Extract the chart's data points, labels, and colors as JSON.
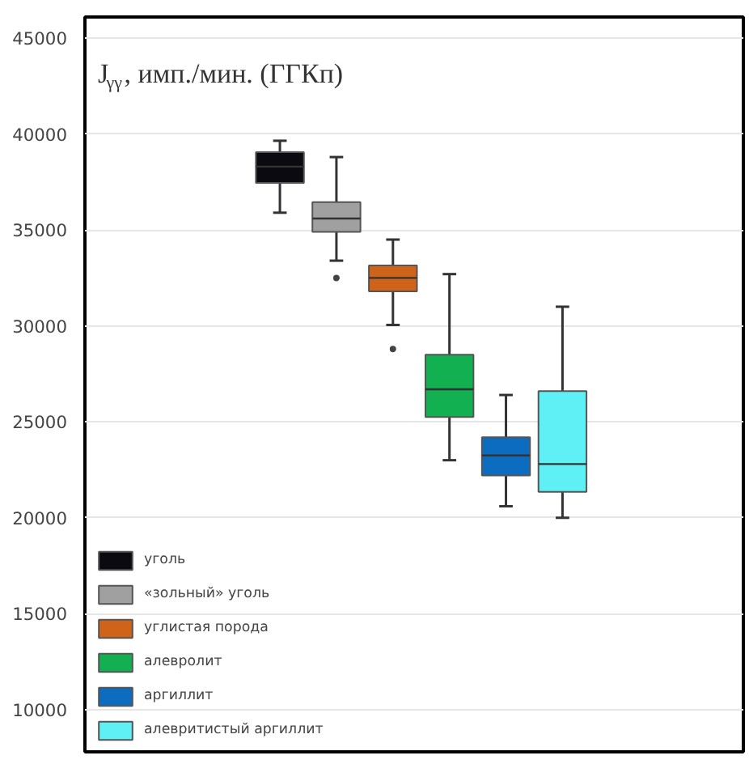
{
  "chart_data": {
    "type": "box",
    "ylabel": "J$_{γγ}$, имп./мин. (ГГКп)",
    "categories": [
      null
    ],
    "ylim": [
      7800,
      46100
    ],
    "yticks": [
      10000,
      15000,
      20000,
      25000,
      30000,
      35000,
      40000,
      45000
    ],
    "grid": "y",
    "legend": "bottom left",
    "series": [
      {
        "name": "уголь",
        "color": "#0a0a10",
        "boxes": [
          {
            "low": 35900,
            "q1": 37450,
            "median": 38300,
            "q3": 39060,
            "high": 39650
          }
        ]
      },
      {
        "name": "«зольный» уголь",
        "color": "#a0a0a0",
        "boxes": [
          {
            "low": 33400,
            "q1": 34900,
            "median": 35600,
            "q3": 36450,
            "high": 38800,
            "outliers": [
              32500
            ]
          }
        ]
      },
      {
        "name": "углистая порода",
        "color": "#d0631a",
        "boxes": [
          {
            "low": 30050,
            "q1": 31800,
            "median": 32500,
            "q3": 33150,
            "high": 34500,
            "outliers": [
              28800
            ]
          }
        ]
      },
      {
        "name": "алевролит",
        "color": "#12b050",
        "boxes": [
          {
            "low": 23000,
            "q1": 25250,
            "median": 26700,
            "q3": 28500,
            "high": 32700
          }
        ]
      },
      {
        "name": "аргиллит",
        "color": "#0b6cc0",
        "boxes": [
          {
            "low": 20600,
            "q1": 22200,
            "median": 23250,
            "q3": 24200,
            "high": 26400
          }
        ]
      },
      {
        "name": "алевритистый аргиллит",
        "color": "#5ef0f5",
        "boxes": [
          {
            "low": 20000,
            "q1": 21350,
            "median": 22800,
            "q3": 26600,
            "high": 31000
          }
        ]
      }
    ]
  }
}
